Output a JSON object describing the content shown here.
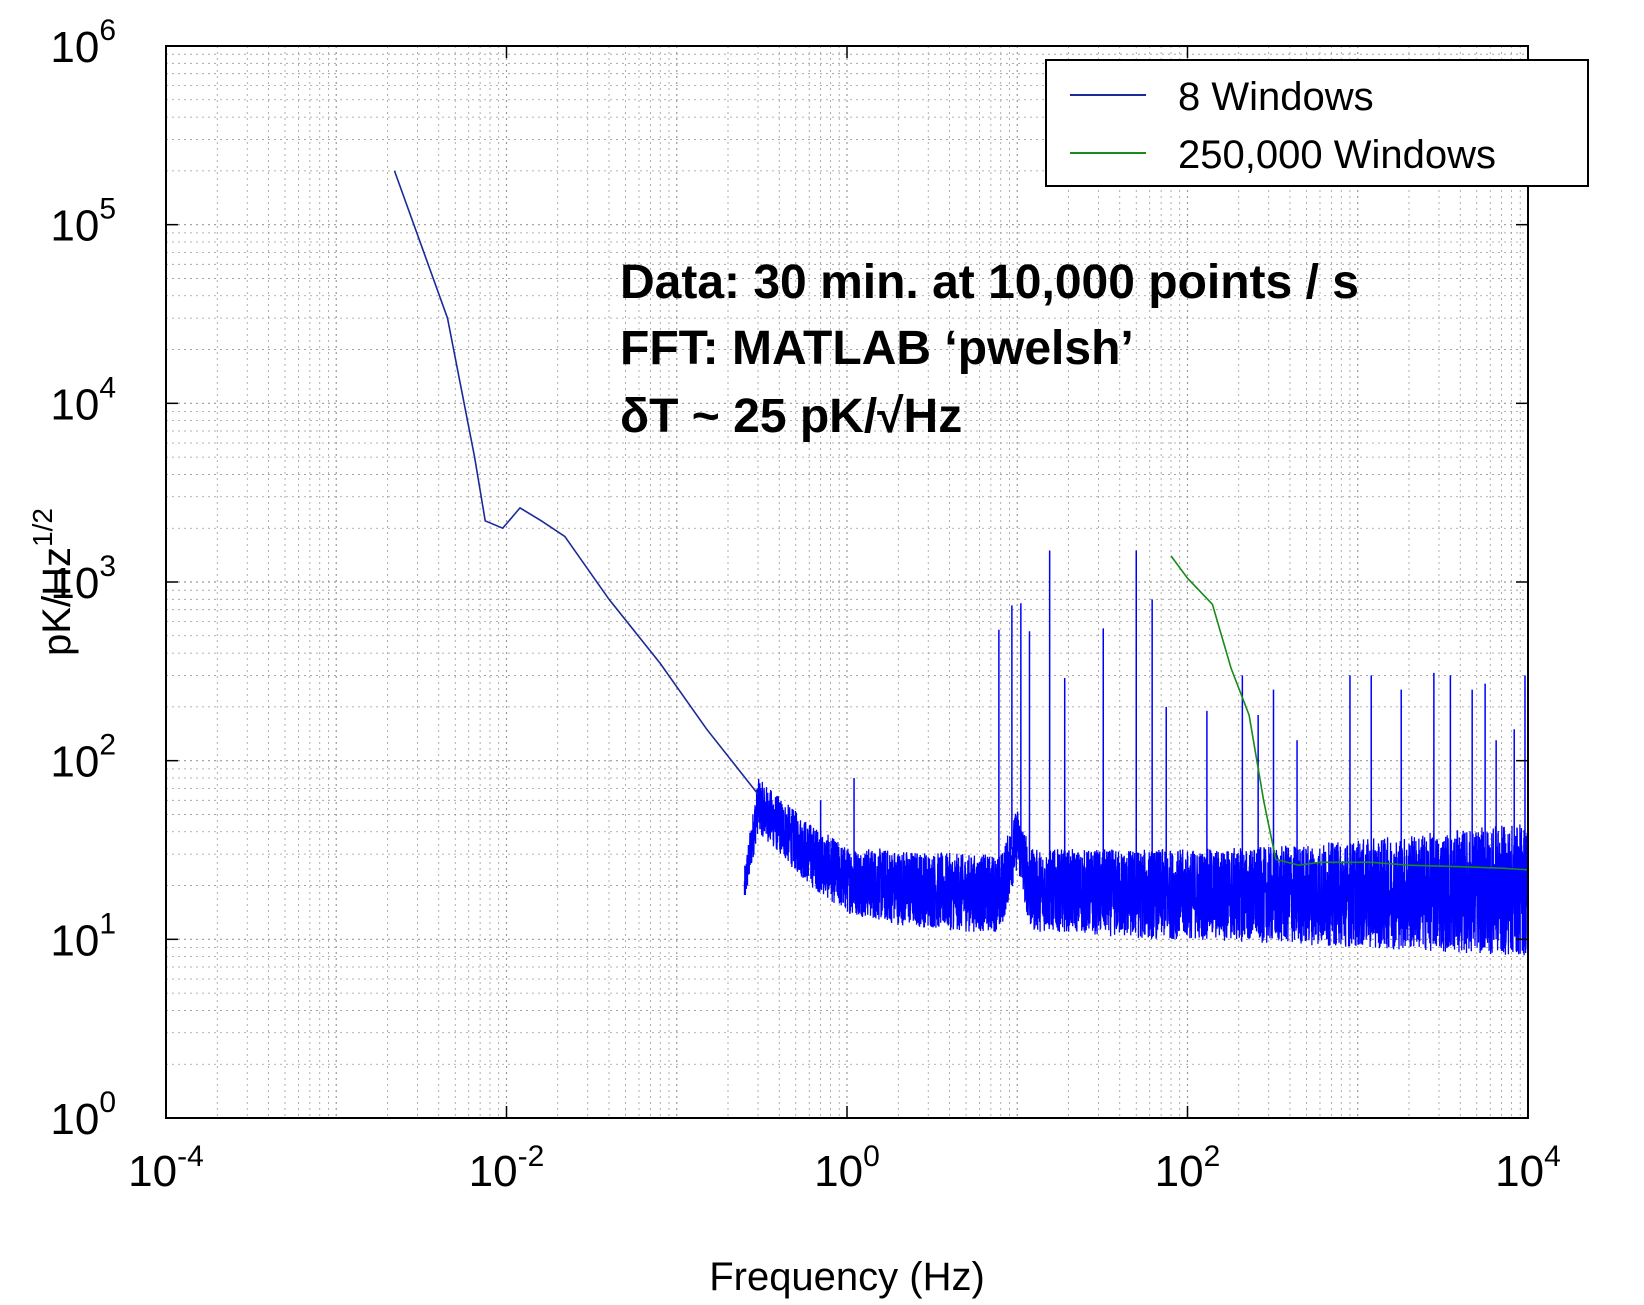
{
  "chart_data": {
    "type": "line",
    "xscale": "log",
    "yscale": "log",
    "xlim": [
      0.0001,
      10000
    ],
    "ylim": [
      1,
      1000000
    ],
    "grid": true,
    "legend_position": "top-right",
    "xlabel": "Frequency (Hz)",
    "ylabel_base": "pK/Hz",
    "ylabel_exp": "1/2",
    "x_tick_values": [
      0.0001,
      0.01,
      1,
      100,
      10000
    ],
    "x_tick_labels": [
      {
        "base": "10",
        "exp": "-4"
      },
      {
        "base": "10",
        "exp": "-2"
      },
      {
        "base": "10",
        "exp": "0"
      },
      {
        "base": "10",
        "exp": "2"
      },
      {
        "base": "10",
        "exp": "4"
      }
    ],
    "y_tick_values": [
      1,
      10,
      100,
      1000,
      10000,
      100000,
      1000000
    ],
    "y_tick_labels": [
      {
        "base": "10",
        "exp": "0"
      },
      {
        "base": "10",
        "exp": "1"
      },
      {
        "base": "10",
        "exp": "2"
      },
      {
        "base": "10",
        "exp": "3"
      },
      {
        "base": "10",
        "exp": "4"
      },
      {
        "base": "10",
        "exp": "5"
      },
      {
        "base": "10",
        "exp": "6"
      }
    ],
    "annotations": [
      "Data: 30 min. at 10,000 points / s",
      "FFT: MATLAB ‘pwelsh’",
      "δT ~ 25 pK/√Hz"
    ],
    "series": [
      {
        "name": "8 Windows",
        "color": "#0000ff",
        "legend_color": "#1a2a9a",
        "x": [
          0.0022,
          0.0045,
          0.0065,
          0.0075,
          0.0095,
          0.012,
          0.016,
          0.022,
          0.04,
          0.08,
          0.15,
          0.3,
          0.6,
          1.0,
          2,
          5,
          8,
          10,
          12,
          20,
          50,
          100,
          300,
          1000,
          3000,
          10000
        ],
        "y": [
          200000,
          30000,
          5000,
          2200,
          2000,
          2600,
          2200,
          1800,
          800,
          350,
          150,
          65,
          32,
          22,
          20,
          19,
          20,
          40,
          20,
          19,
          18,
          17,
          16,
          15,
          15,
          15
        ],
        "band_low": [
          1,
          1,
          1,
          1,
          1,
          1,
          1,
          1,
          1,
          1,
          1,
          40,
          20,
          14,
          12,
          11,
          11,
          25,
          11,
          11,
          10,
          10,
          9.5,
          9,
          8.5,
          8
        ],
        "band_high": [
          1,
          1,
          1,
          1,
          1,
          1,
          1,
          1,
          1,
          1,
          1,
          80,
          45,
          33,
          32,
          30,
          30,
          55,
          32,
          32,
          32,
          32,
          33,
          36,
          40,
          45
        ],
        "peaks": [
          {
            "x": 0.7,
            "y": 60
          },
          {
            "x": 1.1,
            "y": 80
          },
          {
            "x": 7.8,
            "y": 540
          },
          {
            "x": 9.3,
            "y": 740
          },
          {
            "x": 10.5,
            "y": 760
          },
          {
            "x": 11.8,
            "y": 530
          },
          {
            "x": 15.5,
            "y": 1500
          },
          {
            "x": 19,
            "y": 290
          },
          {
            "x": 32,
            "y": 550
          },
          {
            "x": 50,
            "y": 1500
          },
          {
            "x": 62,
            "y": 800
          },
          {
            "x": 75,
            "y": 200
          },
          {
            "x": 130,
            "y": 190
          },
          {
            "x": 210,
            "y": 300
          },
          {
            "x": 260,
            "y": 180
          },
          {
            "x": 320,
            "y": 250
          },
          {
            "x": 440,
            "y": 130
          },
          {
            "x": 900,
            "y": 300
          },
          {
            "x": 1200,
            "y": 300
          },
          {
            "x": 1800,
            "y": 250
          },
          {
            "x": 2800,
            "y": 310
          },
          {
            "x": 3500,
            "y": 300
          },
          {
            "x": 4700,
            "y": 250
          },
          {
            "x": 5600,
            "y": 270
          },
          {
            "x": 6500,
            "y": 130
          },
          {
            "x": 8300,
            "y": 150
          },
          {
            "x": 9600,
            "y": 300
          }
        ]
      },
      {
        "name": "250,000 Windows",
        "color": "#1a8a1a",
        "x": [
          80,
          100,
          140,
          180,
          230,
          280,
          330,
          450,
          600,
          800,
          1200,
          2000,
          4000,
          7000,
          10000
        ],
        "y": [
          1400,
          1050,
          750,
          330,
          180,
          60,
          28,
          26,
          27,
          27,
          27,
          26,
          25.5,
          25,
          24.5
        ]
      }
    ]
  }
}
